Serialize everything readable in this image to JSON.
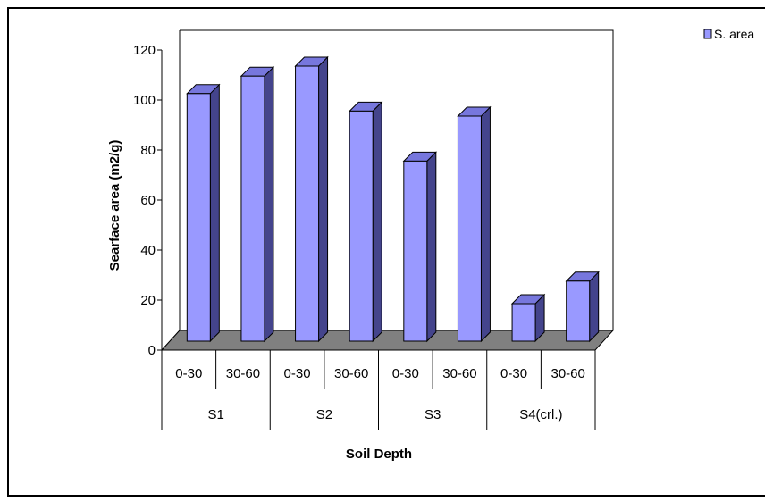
{
  "chart_data": {
    "type": "bar",
    "title": "",
    "ylabel": "Searface area (m2/g)",
    "xlabel": "Soil Depth",
    "ylim": [
      0,
      120
    ],
    "yticks": [
      0,
      20,
      40,
      60,
      80,
      100,
      120
    ],
    "categories": [
      "0-30",
      "30-60",
      "0-30",
      "30-60",
      "0-30",
      "30-60",
      "0-30",
      "30-60"
    ],
    "groups": [
      {
        "label": "S1",
        "span": 2
      },
      {
        "label": "S2",
        "span": 2
      },
      {
        "label": "S3",
        "span": 2
      },
      {
        "label": "S4(crl.)",
        "span": 2
      }
    ],
    "series": [
      {
        "name": "S. area",
        "values": [
          99,
          106,
          110,
          92,
          72,
          90,
          15,
          24
        ]
      }
    ],
    "legend_position": "top-right",
    "grid": false,
    "style": "3d-column",
    "colors": {
      "bar_front": "#9999ff",
      "bar_top": "#7777dd",
      "bar_side": "#44448c",
      "floor": "#808080",
      "axis": "#000000"
    }
  }
}
